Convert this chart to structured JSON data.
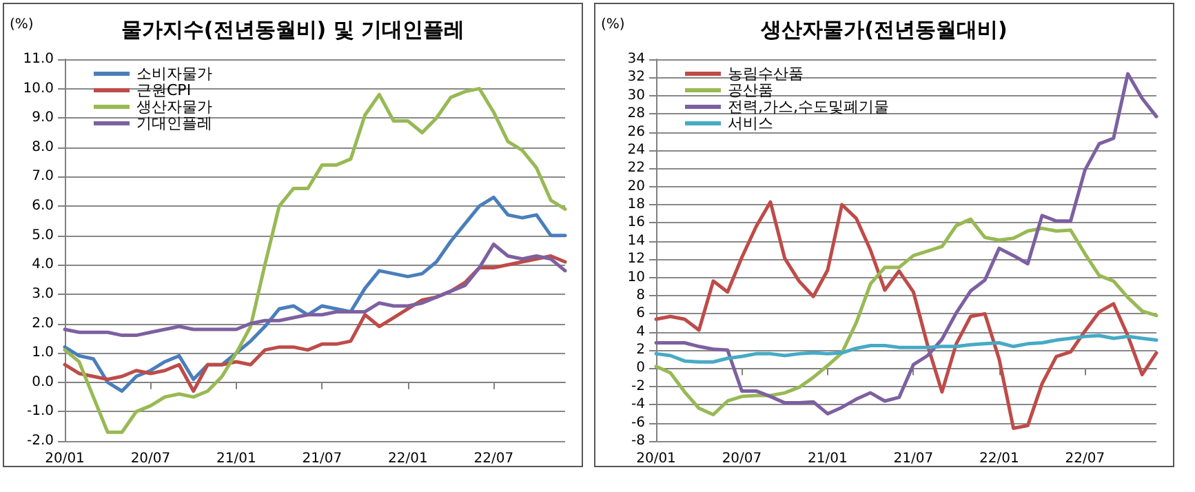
{
  "chart_data": [
    {
      "type": "line",
      "title": "물가지수(전년동월비) 및 기대인플레",
      "ylabel": "(%)",
      "legend": "top left",
      "grid": "y",
      "marker": "none",
      "line_style": "solid",
      "categories": [
        "20/01",
        null,
        null,
        null,
        null,
        null,
        "20/07",
        null,
        null,
        null,
        null,
        null,
        "21/01",
        null,
        null,
        null,
        null,
        null,
        "21/07",
        null,
        null,
        null,
        null,
        null,
        "22/01",
        null,
        null,
        null,
        null,
        null,
        "22/07",
        null,
        null,
        null,
        null,
        null
      ],
      "ylim": [
        -2,
        11
      ],
      "yticks": [
        {
          "value": -2,
          "label": "-2.0"
        },
        {
          "value": -1,
          "label": "-1.0"
        },
        {
          "value": 0,
          "label": "0.0"
        },
        {
          "value": 1,
          "label": "1.0"
        },
        {
          "value": 2,
          "label": "2.0"
        },
        {
          "value": 3,
          "label": "3.0"
        },
        {
          "value": 4,
          "label": "4.0"
        },
        {
          "value": 5,
          "label": "5.0"
        },
        {
          "value": 6,
          "label": "6.0"
        },
        {
          "value": 7,
          "label": "7.0"
        },
        {
          "value": 8,
          "label": "8.0"
        },
        {
          "value": 9,
          "label": "9.0"
        },
        {
          "value": 10,
          "label": "10.0"
        },
        {
          "value": 11,
          "label": "11.0"
        }
      ],
      "series": [
        {
          "name": "소비자물가",
          "color": "#4a7ebb",
          "values": [
            1.2,
            0.9,
            0.8,
            0.0,
            -0.3,
            0.2,
            0.4,
            0.7,
            0.9,
            0.1,
            0.6,
            0.6,
            1.0,
            1.4,
            1.9,
            2.5,
            2.6,
            2.3,
            2.6,
            2.5,
            2.4,
            3.2,
            3.8,
            3.7,
            3.6,
            3.7,
            4.1,
            4.8,
            5.4,
            6.0,
            6.3,
            5.7,
            5.6,
            5.7,
            5.0,
            5.0
          ]
        },
        {
          "name": "근원CPI",
          "color": "#be4b48",
          "values": [
            0.6,
            0.3,
            0.2,
            0.1,
            0.2,
            0.4,
            0.3,
            0.4,
            0.6,
            -0.3,
            0.6,
            0.6,
            0.7,
            0.6,
            1.1,
            1.2,
            1.2,
            1.1,
            1.3,
            1.3,
            1.4,
            2.3,
            1.9,
            2.2,
            2.5,
            2.8,
            2.9,
            3.1,
            3.4,
            3.9,
            3.9,
            4.0,
            4.1,
            4.2,
            4.3,
            4.1
          ]
        },
        {
          "name": "생산자물가",
          "color": "#98b954",
          "values": [
            1.1,
            0.7,
            -0.5,
            -1.7,
            -1.7,
            -1.0,
            -0.8,
            -0.5,
            -0.4,
            -0.5,
            -0.3,
            0.2,
            1.0,
            1.9,
            4.0,
            6.0,
            6.6,
            6.6,
            7.4,
            7.4,
            7.6,
            9.1,
            9.8,
            8.9,
            8.9,
            8.5,
            9.0,
            9.7,
            9.9,
            10.0,
            9.2,
            8.2,
            7.9,
            7.3,
            6.2,
            5.9
          ]
        },
        {
          "name": "기대인플레",
          "color": "#7d60a0",
          "values": [
            1.8,
            1.7,
            1.7,
            1.7,
            1.6,
            1.6,
            1.7,
            1.8,
            1.9,
            1.8,
            1.8,
            1.8,
            1.8,
            2.0,
            2.1,
            2.1,
            2.2,
            2.3,
            2.3,
            2.4,
            2.4,
            2.4,
            2.7,
            2.6,
            2.6,
            2.7,
            2.9,
            3.1,
            3.3,
            3.9,
            4.7,
            4.3,
            4.2,
            4.3,
            4.2,
            3.8
          ]
        }
      ]
    },
    {
      "type": "line",
      "title": "생산자물가(전년동월대비)",
      "ylabel": "(%)",
      "legend": "top left",
      "grid": "y",
      "marker": "none",
      "line_style": "solid",
      "categories": [
        "20/01",
        null,
        null,
        null,
        null,
        null,
        "20/07",
        null,
        null,
        null,
        null,
        null,
        "21/01",
        null,
        null,
        null,
        null,
        null,
        "21/07",
        null,
        null,
        null,
        null,
        null,
        "22/01",
        null,
        null,
        null,
        null,
        null,
        "22/07",
        null,
        null,
        null,
        null,
        null
      ],
      "ylim": [
        -8,
        34
      ],
      "yticks": [
        -8,
        -6,
        -4,
        -2,
        0,
        2,
        4,
        6,
        8,
        10,
        12,
        14,
        16,
        18,
        20,
        22,
        24,
        26,
        28,
        30,
        32,
        34
      ],
      "series": [
        {
          "name": "농림수산품",
          "color": "#be4b48",
          "values": [
            5.4,
            5.7,
            5.4,
            4.2,
            9.6,
            8.4,
            12.2,
            15.6,
            18.3,
            12.1,
            9.6,
            7.9,
            10.8,
            18.0,
            16.5,
            13.0,
            8.6,
            10.7,
            8.4,
            2.5,
            -2.6,
            2.7,
            5.7,
            6.0,
            1.0,
            -6.6,
            -6.3,
            -1.7,
            1.3,
            1.8,
            4.1,
            6.2,
            7.1,
            3.6,
            -0.7,
            1.7
          ]
        },
        {
          "name": "공산품",
          "color": "#98b954",
          "values": [
            0.2,
            -0.5,
            -2.6,
            -4.4,
            -5.1,
            -3.6,
            -3.1,
            -3.0,
            -3.0,
            -2.7,
            -2.1,
            -1.0,
            0.3,
            1.7,
            5.0,
            9.3,
            11.1,
            11.1,
            12.4,
            12.9,
            13.4,
            15.7,
            16.4,
            14.4,
            14.1,
            14.3,
            15.1,
            15.4,
            15.1,
            15.2,
            12.6,
            10.2,
            9.6,
            7.8,
            6.3,
            5.8
          ]
        },
        {
          "name": "전력,가스,수도및폐기물",
          "color": "#7d60a0",
          "values": [
            2.8,
            2.8,
            2.8,
            2.4,
            2.1,
            2.0,
            -2.5,
            -2.5,
            -3.1,
            -3.8,
            -3.8,
            -3.7,
            -5.0,
            -4.3,
            -3.4,
            -2.7,
            -3.6,
            -3.2,
            0.4,
            1.4,
            3.2,
            6.1,
            8.5,
            9.7,
            13.2,
            12.4,
            11.5,
            16.8,
            16.2,
            16.2,
            21.8,
            24.7,
            25.3,
            32.4,
            29.7,
            27.7
          ]
        },
        {
          "name": "서비스",
          "color": "#46aac5",
          "values": [
            1.6,
            1.4,
            0.8,
            0.7,
            0.7,
            1.1,
            1.3,
            1.6,
            1.6,
            1.4,
            1.6,
            1.7,
            1.6,
            1.7,
            2.2,
            2.5,
            2.5,
            2.3,
            2.3,
            2.3,
            2.4,
            2.4,
            2.6,
            2.7,
            2.8,
            2.4,
            2.7,
            2.8,
            3.1,
            3.3,
            3.5,
            3.6,
            3.3,
            3.5,
            3.3,
            3.1
          ]
        }
      ]
    }
  ]
}
